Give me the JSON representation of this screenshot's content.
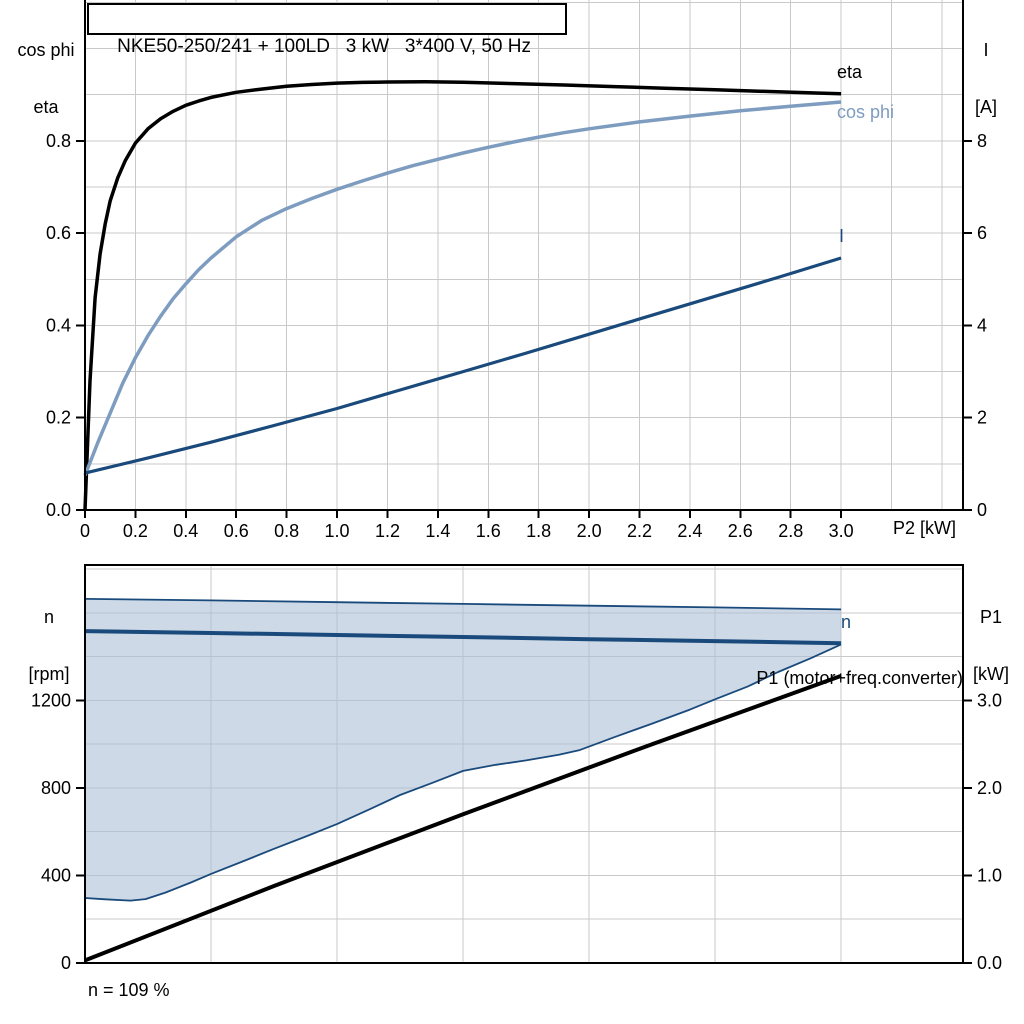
{
  "title": "NKE50-250/241 + 100LD   3 kW   3*400 V, 50 Hz",
  "style": {
    "axis_color": "#000000",
    "grid_color": "#c9c9c9",
    "dark_blue": "#1a4a7c",
    "light_blue": "#7d9cc0",
    "band_fill": "rgba(171,191,213,0.6)"
  },
  "chart_data": [
    {
      "type": "line",
      "title": "NKE50-250/241 + 100LD   3 kW   3*400 V, 50 Hz",
      "xlabel": "P2 [kW]",
      "ylabel_left_lines": [
        "cos phi",
        "eta"
      ],
      "ylabel_right_lines": [
        "I",
        "[A]"
      ],
      "xlim": [
        0,
        3.4835
      ],
      "ylim_left": [
        0,
        1.1051
      ],
      "ylim_right": [
        0,
        11.051
      ],
      "x_ticks": [
        "0",
        "0.2",
        "0.4",
        "0.6",
        "0.8",
        "1.0",
        "1.2",
        "1.4",
        "1.6",
        "1.8",
        "2.0",
        "2.2",
        "2.4",
        "2.6",
        "2.8",
        "3.0"
      ],
      "y_ticks_left": [
        "0.0",
        "0.2",
        "0.4",
        "0.6",
        "0.8"
      ],
      "y_ticks_right": [
        "0",
        "2",
        "4",
        "6",
        "8"
      ],
      "grid": true,
      "series": [
        {
          "name": "eta",
          "axis": "left",
          "color": "#000000",
          "width": 3.5,
          "points": [
            [
              0,
              0
            ],
            [
              0.02,
              0.28
            ],
            [
              0.04,
              0.46
            ],
            [
              0.06,
              0.555
            ],
            [
              0.08,
              0.62
            ],
            [
              0.1,
              0.67
            ],
            [
              0.13,
              0.72
            ],
            [
              0.16,
              0.757
            ],
            [
              0.2,
              0.795
            ],
            [
              0.25,
              0.826
            ],
            [
              0.3,
              0.848
            ],
            [
              0.35,
              0.864
            ],
            [
              0.4,
              0.877
            ],
            [
              0.45,
              0.886
            ],
            [
              0.5,
              0.894
            ],
            [
              0.6,
              0.905
            ],
            [
              0.7,
              0.912
            ],
            [
              0.8,
              0.918
            ],
            [
              0.9,
              0.922
            ],
            [
              1,
              0.925
            ],
            [
              1.1,
              0.9265
            ],
            [
              1.2,
              0.9275
            ],
            [
              1.35,
              0.9278
            ],
            [
              1.5,
              0.9267
            ],
            [
              1.7,
              0.924
            ],
            [
              1.9,
              0.921
            ],
            [
              2.1,
              0.9175
            ],
            [
              2.3,
              0.914
            ],
            [
              2.5,
              0.9105
            ],
            [
              2.7,
              0.907
            ],
            [
              2.9,
              0.9035
            ],
            [
              3,
              0.902
            ]
          ]
        },
        {
          "name": "cos phi",
          "axis": "left",
          "color": "#7d9cc0",
          "width": 3.5,
          "points": [
            [
              0,
              0.075
            ],
            [
              0.05,
              0.145
            ],
            [
              0.1,
              0.21
            ],
            [
              0.15,
              0.275
            ],
            [
              0.2,
              0.33
            ],
            [
              0.25,
              0.378
            ],
            [
              0.3,
              0.42
            ],
            [
              0.35,
              0.458
            ],
            [
              0.4,
              0.49
            ],
            [
              0.45,
              0.52
            ],
            [
              0.5,
              0.546
            ],
            [
              0.6,
              0.592
            ],
            [
              0.7,
              0.627
            ],
            [
              0.8,
              0.653
            ],
            [
              0.9,
              0.675
            ],
            [
              1,
              0.695
            ],
            [
              1.1,
              0.713
            ],
            [
              1.2,
              0.73
            ],
            [
              1.3,
              0.746
            ],
            [
              1.4,
              0.76
            ],
            [
              1.5,
              0.7735
            ],
            [
              1.6,
              0.786
            ],
            [
              1.7,
              0.7975
            ],
            [
              1.8,
              0.808
            ],
            [
              1.9,
              0.8175
            ],
            [
              2,
              0.826
            ],
            [
              2.2,
              0.841
            ],
            [
              2.4,
              0.8535
            ],
            [
              2.6,
              0.865
            ],
            [
              2.8,
              0.875
            ],
            [
              3,
              0.884
            ]
          ]
        },
        {
          "name": "I",
          "axis": "right",
          "color": "#1a4a7c",
          "width": 3.2,
          "points": [
            [
              0,
              0.8
            ],
            [
              0.25,
              1.13
            ],
            [
              0.5,
              1.47
            ],
            [
              0.75,
              1.83
            ],
            [
              1,
              2.2
            ],
            [
              1.25,
              2.6
            ],
            [
              1.5,
              3
            ],
            [
              1.75,
              3.4
            ],
            [
              2,
              3.81
            ],
            [
              2.25,
              4.22
            ],
            [
              2.5,
              4.63
            ],
            [
              2.75,
              5.04
            ],
            [
              3,
              5.46
            ]
          ]
        }
      ]
    },
    {
      "type": "line",
      "xlabel": "",
      "ylabel_left_lines": [
        "n",
        "[rpm]"
      ],
      "ylabel_right_lines": [
        "P1",
        "[kW]"
      ],
      "xlim": [
        0,
        3.4835
      ],
      "ylim_left": [
        0,
        1819
      ],
      "ylim_right": [
        0,
        4.5475
      ],
      "x_ticks": [],
      "y_ticks_left": [
        "0",
        "400",
        "800",
        "1200"
      ],
      "y_ticks_right": [
        "0.0",
        "1.0",
        "2.0",
        "3.0"
      ],
      "grid": true,
      "band": {
        "name": "speed-range-envelope",
        "fill": "rgba(171,191,213,0.6)",
        "edge": "#1a4a7c",
        "edge_width": 1.8,
        "upper": [
          [
            0,
            1664
          ],
          [
            0.5,
            1657
          ],
          [
            1,
            1649
          ],
          [
            1.5,
            1641
          ],
          [
            2,
            1633
          ],
          [
            2.5,
            1625
          ],
          [
            3,
            1616
          ]
        ],
        "lower": [
          [
            0,
            297
          ],
          [
            0.08,
            291
          ],
          [
            0.18,
            285
          ],
          [
            0.24,
            292
          ],
          [
            0.32,
            322
          ],
          [
            0.42,
            368
          ],
          [
            0.5,
            407
          ],
          [
            0.63,
            466
          ],
          [
            0.75,
            522
          ],
          [
            0.88,
            580
          ],
          [
            1,
            635
          ],
          [
            1.13,
            703
          ],
          [
            1.25,
            768
          ],
          [
            1.38,
            824
          ],
          [
            1.5,
            878
          ],
          [
            1.63,
            906
          ],
          [
            1.75,
            926
          ],
          [
            1.88,
            952
          ],
          [
            1.96,
            972
          ],
          [
            2.1,
            1032
          ],
          [
            2.25,
            1094
          ],
          [
            2.4,
            1158
          ],
          [
            2.5,
            1205
          ],
          [
            2.63,
            1264
          ],
          [
            2.75,
            1330
          ],
          [
            2.88,
            1393
          ],
          [
            3,
            1456
          ]
        ]
      },
      "series": [
        {
          "name": "n",
          "axis": "left",
          "color": "#1a4a7c",
          "width": 4,
          "points": [
            [
              0,
              1517
            ],
            [
              0.5,
              1508
            ],
            [
              1,
              1499
            ],
            [
              1.5,
              1490
            ],
            [
              2,
              1480
            ],
            [
              2.5,
              1471
            ],
            [
              3,
              1461
            ]
          ]
        },
        {
          "name": "P1 (motor+freq.converter)",
          "axis": "right",
          "color": "#000000",
          "width": 4,
          "points": [
            [
              0,
              0.03
            ],
            [
              0.75,
              0.88
            ],
            [
              1.5,
              1.7
            ],
            [
              2.25,
              2.5
            ],
            [
              3,
              3.28
            ]
          ]
        }
      ],
      "annotation": "n = 109 %"
    }
  ]
}
